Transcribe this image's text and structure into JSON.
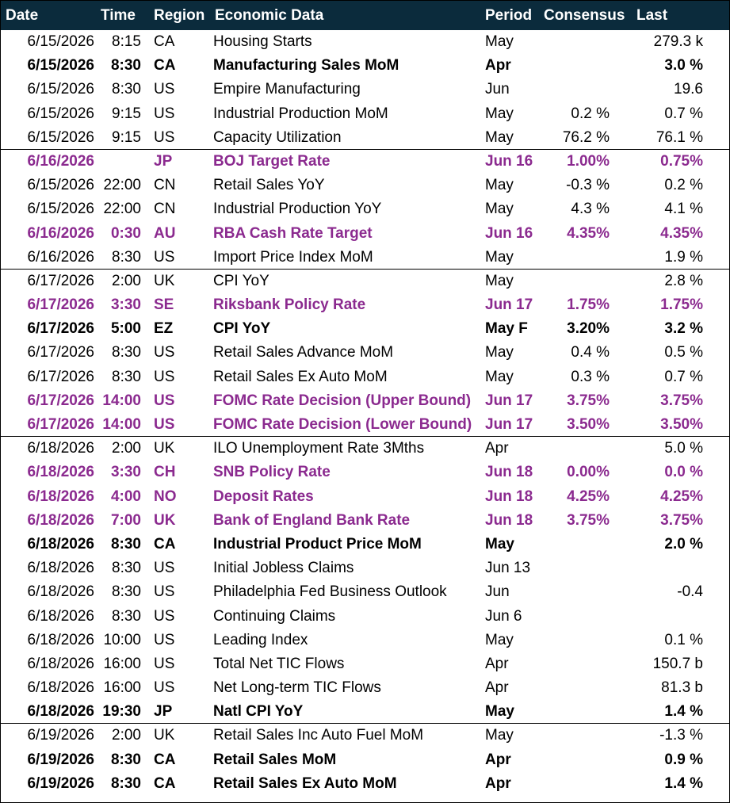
{
  "table": {
    "headers": {
      "date": "Date",
      "time": "Time",
      "region": "Region",
      "event": "Economic Data",
      "period": "Period",
      "consensus": "Consensus",
      "last": "Last"
    },
    "rows": [
      {
        "date": "6/15/2026",
        "time": "8:15",
        "region": "CA",
        "event": "Housing Starts",
        "period": "May",
        "consensus": "",
        "last": "279.3 k",
        "style": "normal",
        "group_end": false
      },
      {
        "date": "6/15/2026",
        "time": "8:30",
        "region": "CA",
        "event": "Manufacturing Sales MoM",
        "period": "Apr",
        "consensus": "",
        "last": "3.0 %",
        "style": "bold",
        "group_end": false
      },
      {
        "date": "6/15/2026",
        "time": "8:30",
        "region": "US",
        "event": "Empire Manufacturing",
        "period": "Jun",
        "consensus": "",
        "last": "19.6",
        "style": "normal",
        "group_end": false
      },
      {
        "date": "6/15/2026",
        "time": "9:15",
        "region": "US",
        "event": "Industrial Production MoM",
        "period": "May",
        "consensus": "0.2 %",
        "last": "0.7 %",
        "style": "normal",
        "group_end": false
      },
      {
        "date": "6/15/2026",
        "time": "9:15",
        "region": "US",
        "event": "Capacity Utilization",
        "period": "May",
        "consensus": "76.2 %",
        "last": "76.1 %",
        "style": "normal",
        "group_end": true
      },
      {
        "date": "6/16/2026",
        "time": "",
        "region": "JP",
        "event": "BOJ Target Rate",
        "period": "Jun 16",
        "consensus": "1.00%",
        "last": "0.75%",
        "style": "central",
        "group_end": false
      },
      {
        "date": "6/15/2026",
        "time": "22:00",
        "region": "CN",
        "event": "Retail Sales YoY",
        "period": "May",
        "consensus": "-0.3 %",
        "last": "0.2 %",
        "style": "normal",
        "group_end": false
      },
      {
        "date": "6/15/2026",
        "time": "22:00",
        "region": "CN",
        "event": "Industrial Production YoY",
        "period": "May",
        "consensus": "4.3 %",
        "last": "4.1 %",
        "style": "normal",
        "group_end": false
      },
      {
        "date": "6/16/2026",
        "time": "0:30",
        "region": "AU",
        "event": "RBA Cash Rate Target",
        "period": "Jun 16",
        "consensus": "4.35%",
        "last": "4.35%",
        "style": "central",
        "group_end": false
      },
      {
        "date": "6/16/2026",
        "time": "8:30",
        "region": "US",
        "event": "Import Price Index MoM",
        "period": "May",
        "consensus": "",
        "last": "1.9 %",
        "style": "normal",
        "group_end": true
      },
      {
        "date": "6/17/2026",
        "time": "2:00",
        "region": "UK",
        "event": "CPI YoY",
        "period": "May",
        "consensus": "",
        "last": "2.8 %",
        "style": "normal",
        "group_end": false
      },
      {
        "date": "6/17/2026",
        "time": "3:30",
        "region": "SE",
        "event": "Riksbank Policy Rate",
        "period": "Jun 17",
        "consensus": "1.75%",
        "last": "1.75%",
        "style": "central",
        "group_end": false
      },
      {
        "date": "6/17/2026",
        "time": "5:00",
        "region": "EZ",
        "event": "CPI YoY",
        "period": "May F",
        "consensus": "3.20%",
        "last": "3.2 %",
        "style": "bold",
        "group_end": false
      },
      {
        "date": "6/17/2026",
        "time": "8:30",
        "region": "US",
        "event": "Retail Sales Advance MoM",
        "period": "May",
        "consensus": "0.4 %",
        "last": "0.5 %",
        "style": "normal",
        "group_end": false
      },
      {
        "date": "6/17/2026",
        "time": "8:30",
        "region": "US",
        "event": "Retail Sales Ex Auto MoM",
        "period": "May",
        "consensus": "0.3 %",
        "last": "0.7 %",
        "style": "normal",
        "group_end": false
      },
      {
        "date": "6/17/2026",
        "time": "14:00",
        "region": "US",
        "event": "FOMC Rate Decision (Upper Bound)",
        "period": "Jun 17",
        "consensus": "3.75%",
        "last": "3.75%",
        "style": "central",
        "group_end": false
      },
      {
        "date": "6/17/2026",
        "time": "14:00",
        "region": "US",
        "event": "FOMC Rate Decision (Lower Bound)",
        "period": "Jun 17",
        "consensus": "3.50%",
        "last": "3.50%",
        "style": "central",
        "group_end": true
      },
      {
        "date": "6/18/2026",
        "time": "2:00",
        "region": "UK",
        "event": "ILO Unemployment Rate 3Mths",
        "period": "Apr",
        "consensus": "",
        "last": "5.0 %",
        "style": "normal",
        "group_end": false
      },
      {
        "date": "6/18/2026",
        "time": "3:30",
        "region": "CH",
        "event": "SNB Policy Rate",
        "period": "Jun 18",
        "consensus": "0.00%",
        "last": "0.0 %",
        "style": "central",
        "group_end": false
      },
      {
        "date": "6/18/2026",
        "time": "4:00",
        "region": "NO",
        "event": "Deposit Rates",
        "period": "Jun 18",
        "consensus": "4.25%",
        "last": "4.25%",
        "style": "central",
        "group_end": false
      },
      {
        "date": "6/18/2026",
        "time": "7:00",
        "region": "UK",
        "event": "Bank of England Bank Rate",
        "period": "Jun 18",
        "consensus": "3.75%",
        "last": "3.75%",
        "style": "central",
        "group_end": false
      },
      {
        "date": "6/18/2026",
        "time": "8:30",
        "region": "CA",
        "event": "Industrial Product Price MoM",
        "period": "May",
        "consensus": "",
        "last": "2.0 %",
        "style": "bold",
        "group_end": false
      },
      {
        "date": "6/18/2026",
        "time": "8:30",
        "region": "US",
        "event": "Initial Jobless Claims",
        "period": "Jun 13",
        "consensus": "",
        "last": "",
        "style": "normal",
        "group_end": false
      },
      {
        "date": "6/18/2026",
        "time": "8:30",
        "region": "US",
        "event": "Philadelphia Fed Business Outlook",
        "period": "Jun",
        "consensus": "",
        "last": "-0.4",
        "style": "normal",
        "group_end": false
      },
      {
        "date": "6/18/2026",
        "time": "8:30",
        "region": "US",
        "event": "Continuing Claims",
        "period": "Jun 6",
        "consensus": "",
        "last": "",
        "style": "normal",
        "group_end": false
      },
      {
        "date": "6/18/2026",
        "time": "10:00",
        "region": "US",
        "event": "Leading Index",
        "period": "May",
        "consensus": "",
        "last": "0.1 %",
        "style": "normal",
        "group_end": false
      },
      {
        "date": "6/18/2026",
        "time": "16:00",
        "region": "US",
        "event": "Total Net TIC Flows",
        "period": "Apr",
        "consensus": "",
        "last": "150.7 b",
        "style": "normal",
        "group_end": false
      },
      {
        "date": "6/18/2026",
        "time": "16:00",
        "region": "US",
        "event": "Net Long-term TIC Flows",
        "period": "Apr",
        "consensus": "",
        "last": "81.3 b",
        "style": "normal",
        "group_end": false
      },
      {
        "date": "6/18/2026",
        "time": "19:30",
        "region": "JP",
        "event": "Natl CPI YoY",
        "period": "May",
        "consensus": "",
        "last": "1.4 %",
        "style": "bold",
        "group_end": true
      },
      {
        "date": "6/19/2026",
        "time": "2:00",
        "region": "UK",
        "event": "Retail Sales Inc Auto Fuel MoM",
        "period": "May",
        "consensus": "",
        "last": "-1.3 %",
        "style": "normal",
        "group_end": false
      },
      {
        "date": "6/19/2026",
        "time": "8:30",
        "region": "CA",
        "event": "Retail Sales MoM",
        "period": "Apr",
        "consensus": "",
        "last": "0.9 %",
        "style": "bold",
        "group_end": false
      },
      {
        "date": "6/19/2026",
        "time": "8:30",
        "region": "CA",
        "event": "Retail Sales Ex Auto MoM",
        "period": "Apr",
        "consensus": "",
        "last": "1.4 %",
        "style": "bold",
        "group_end": false
      }
    ]
  },
  "colors": {
    "header_bg": "#0b2b3c",
    "header_text": "#ffffff",
    "central_bank_text": "#8b2a8f",
    "normal_text": "#000000"
  }
}
